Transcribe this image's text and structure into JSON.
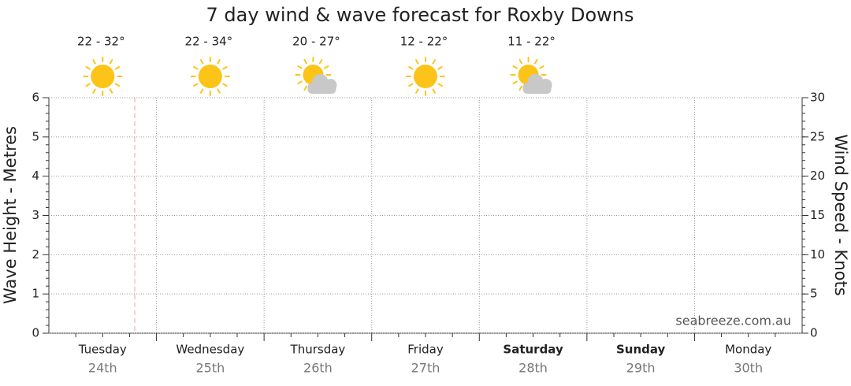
{
  "chart_data": {
    "type": "line",
    "title": "7 day wind & wave forecast for Roxby Downs",
    "y_label": "Wave Height - Metres",
    "y2_label": "Wind Speed - Knots",
    "watermark": "seabreeze.com.au",
    "categories": [
      "Tuesday",
      "Wednesday",
      "Thursday",
      "Friday",
      "Saturday",
      "Sunday",
      "Monday"
    ],
    "dates": [
      "24th",
      "25th",
      "26th",
      "27th",
      "28th",
      "29th",
      "30th"
    ],
    "bold": [
      false,
      false,
      false,
      false,
      true,
      true,
      false
    ],
    "temperatures": [
      "22 - 32°",
      "22 - 34°",
      "20 - 27°",
      "12 - 22°",
      "11 - 22°"
    ],
    "icons": [
      "sun",
      "sun",
      "partly-cloudy",
      "sun",
      "partly-cloudy"
    ],
    "ylim": [
      0,
      6
    ],
    "yticks": [
      0,
      1,
      2,
      3,
      4,
      5,
      6
    ],
    "y2lim": [
      0,
      30
    ],
    "y2ticks": [
      0,
      5,
      10,
      15,
      20,
      25,
      30
    ],
    "grid": true
  }
}
